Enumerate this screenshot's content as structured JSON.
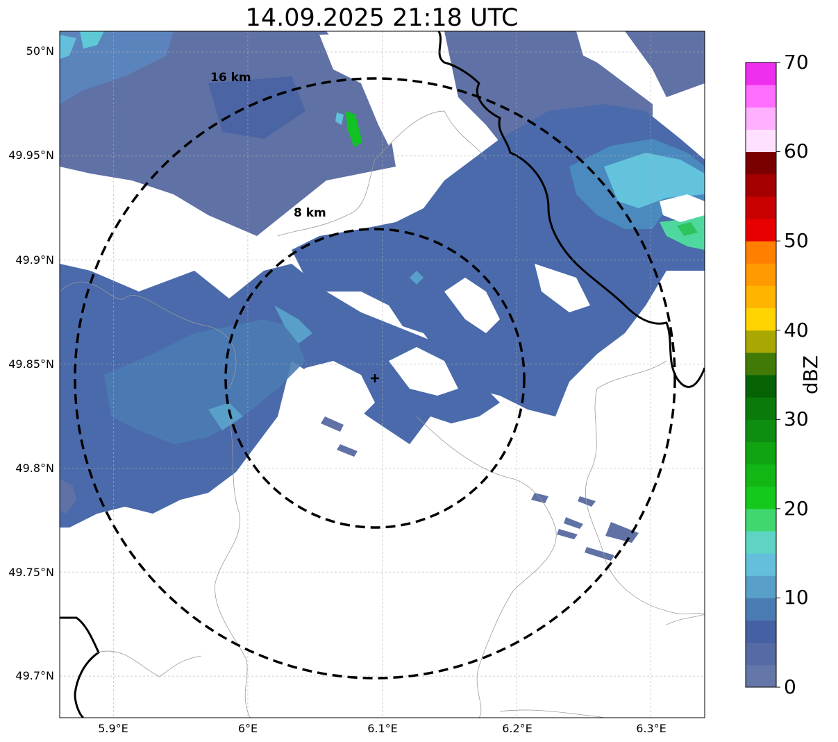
{
  "title": "14.09.2025 21:18 UTC",
  "map": {
    "lon_range": [
      5.86,
      6.34
    ],
    "lat_range": [
      49.68,
      50.01
    ],
    "lon_ticks": [
      {
        "value": 5.9,
        "label": "5.9°E"
      },
      {
        "value": 6.0,
        "label": "6°E"
      },
      {
        "value": 6.1,
        "label": "6.1°E"
      },
      {
        "value": 6.2,
        "label": "6.2°E"
      },
      {
        "value": 6.3,
        "label": "6.3°E"
      }
    ],
    "lat_ticks": [
      {
        "value": 50.0,
        "label": "50°N"
      },
      {
        "value": 49.95,
        "label": "49.95°N"
      },
      {
        "value": 49.9,
        "label": "49.9°N"
      },
      {
        "value": 49.85,
        "label": "49.85°N"
      },
      {
        "value": 49.8,
        "label": "49.8°N"
      },
      {
        "value": 49.75,
        "label": "49.75°N"
      },
      {
        "value": 49.7,
        "label": "49.7°N"
      }
    ],
    "radar_site": {
      "lon": 6.094,
      "lat": 49.843
    },
    "range_rings": [
      {
        "radius_km": 8,
        "label": "8 km"
      },
      {
        "radius_km": 16,
        "label": "16 km"
      }
    ],
    "grid": true
  },
  "colorbar": {
    "label": "dBZ",
    "min": 0,
    "max": 70,
    "ticks": [
      "0",
      "10",
      "20",
      "30",
      "40",
      "50",
      "60",
      "70"
    ],
    "colors": [
      "#6477a8",
      "#566aa5",
      "#4661a3",
      "#4b7bb3",
      "#58a0c9",
      "#63bfdb",
      "#5fd4c4",
      "#40d86e",
      "#14c91c",
      "#12b615",
      "#10a412",
      "#0e8d10",
      "#0a7a0b",
      "#056306",
      "#427a08",
      "#a9a802",
      "#ffd400",
      "#ffb400",
      "#ff9a00",
      "#ff7f00",
      "#e80000",
      "#c80000",
      "#a40000",
      "#7a0000",
      "#ffe0ff",
      "#ffb0ff",
      "#ff6eff",
      "#ee30ee"
    ]
  }
}
